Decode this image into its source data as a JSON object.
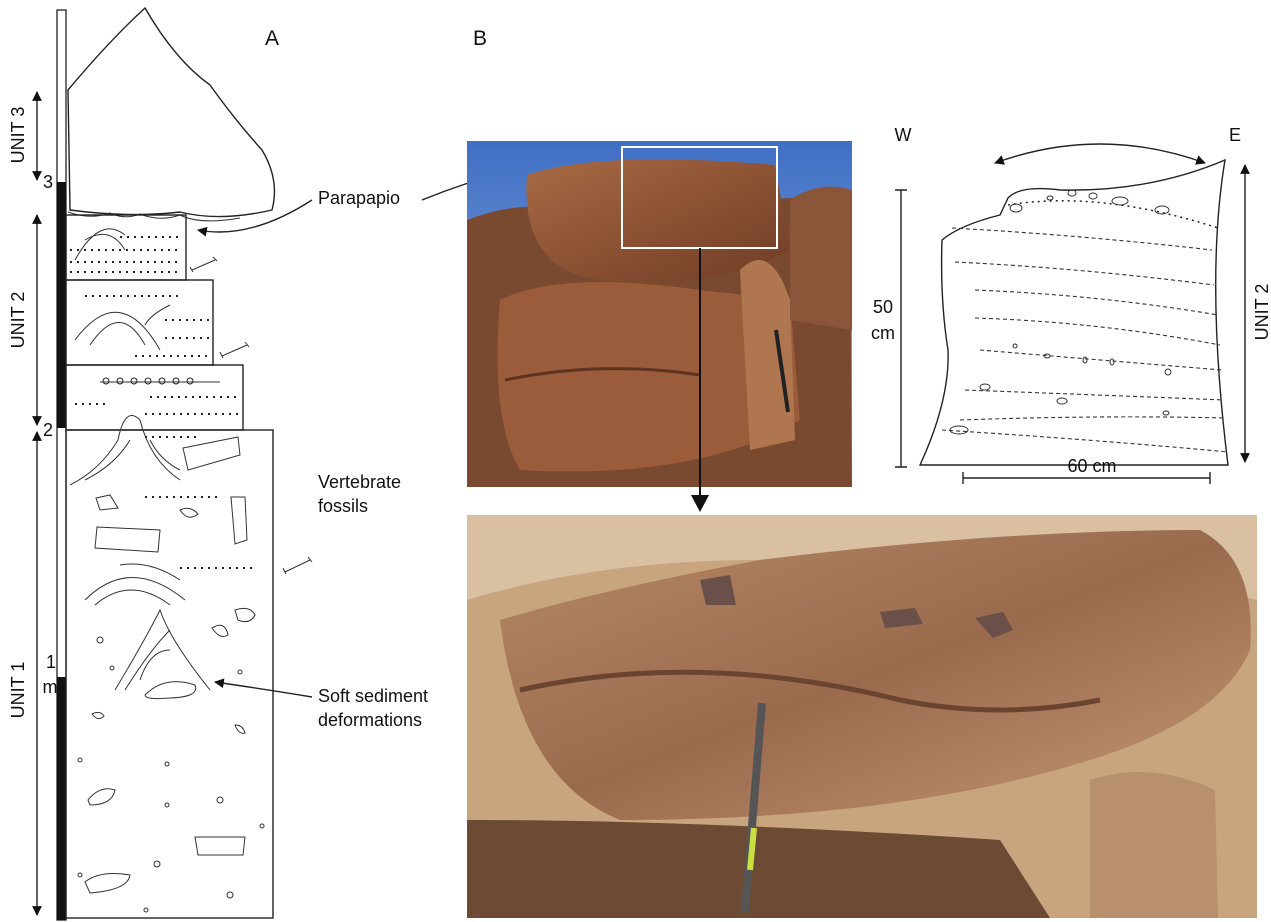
{
  "panel_a": {
    "label": "A",
    "units": [
      "UNIT 3",
      "UNIT 2",
      "UNIT 1"
    ],
    "scale_ticks": [
      "3",
      "2",
      "1"
    ],
    "scale_unit": "m",
    "annotations": {
      "parapapio": "Parapapio",
      "vertebrate": [
        "Vertebrate",
        "fossils"
      ],
      "soft": [
        "Soft sediment",
        "deformations"
      ]
    }
  },
  "panel_b": {
    "label": "B",
    "sketch": {
      "west": "W",
      "east": "E",
      "height": [
        "50",
        "cm"
      ],
      "width": "60 cm",
      "unit": "UNIT 2"
    }
  }
}
